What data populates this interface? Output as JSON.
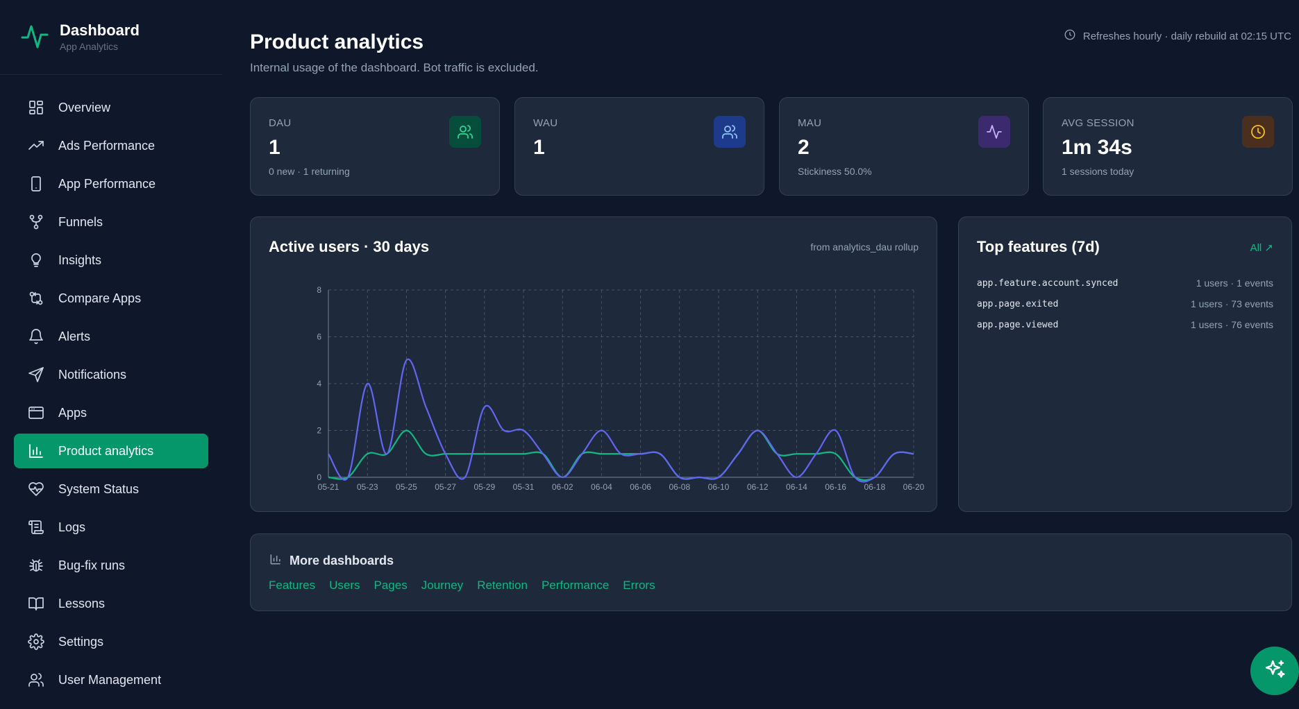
{
  "brand": {
    "title": "Dashboard",
    "subtitle": "App Analytics",
    "accent": "#10b981"
  },
  "sidebar": {
    "items": [
      {
        "label": "Overview",
        "icon": "grid-icon",
        "active": false
      },
      {
        "label": "Ads Performance",
        "icon": "trending-up-icon",
        "active": false
      },
      {
        "label": "App Performance",
        "icon": "smartphone-icon",
        "active": false
      },
      {
        "label": "Funnels",
        "icon": "funnel-nodes-icon",
        "active": false
      },
      {
        "label": "Insights",
        "icon": "lightbulb-icon",
        "active": false
      },
      {
        "label": "Compare Apps",
        "icon": "git-compare-icon",
        "active": false
      },
      {
        "label": "Alerts",
        "icon": "bell-icon",
        "active": false
      },
      {
        "label": "Notifications",
        "icon": "send-icon",
        "active": false
      },
      {
        "label": "Apps",
        "icon": "app-window-icon",
        "active": false
      },
      {
        "label": "Product analytics",
        "icon": "bar-chart-icon",
        "active": true
      },
      {
        "label": "System Status",
        "icon": "heart-pulse-icon",
        "active": false
      },
      {
        "label": "Logs",
        "icon": "scroll-icon",
        "active": false
      },
      {
        "label": "Bug-fix runs",
        "icon": "bug-icon",
        "active": false
      },
      {
        "label": "Lessons",
        "icon": "book-open-icon",
        "active": false
      },
      {
        "label": "Settings",
        "icon": "gear-icon",
        "active": false
      },
      {
        "label": "User Management",
        "icon": "users-icon",
        "active": false
      }
    ]
  },
  "header": {
    "title": "Product analytics",
    "subtitle": "Internal usage of the dashboard. Bot traffic is excluded.",
    "refresh": "Refreshes hourly · daily rebuild at 02:15 UTC"
  },
  "kpis": [
    {
      "label": "DAU",
      "value": "1",
      "sub": "0 new · 1 returning",
      "icon": "users-icon",
      "icon_bg": "#064e3b",
      "icon_color": "#34d399"
    },
    {
      "label": "WAU",
      "value": "1",
      "sub": "",
      "icon": "users-icon",
      "icon_bg": "#1e3a8a",
      "icon_color": "#93c5fd"
    },
    {
      "label": "MAU",
      "value": "2",
      "sub": "Stickiness 50.0%",
      "icon": "activity-icon",
      "icon_bg": "#3b2a6e",
      "icon_color": "#c4b5fd"
    },
    {
      "label": "AVG SESSION",
      "value": "1m 34s",
      "sub": "1 sessions today",
      "icon": "clock-icon",
      "icon_bg": "#4a2e1e",
      "icon_color": "#fbbf24"
    }
  ],
  "active_users": {
    "title": "Active users · 30 days",
    "note": "from analytics_dau rollup"
  },
  "chart_data": {
    "type": "line",
    "x": [
      "05-21",
      "05-22",
      "05-23",
      "05-24",
      "05-25",
      "05-26",
      "05-27",
      "05-28",
      "05-29",
      "05-30",
      "05-31",
      "06-01",
      "06-02",
      "06-03",
      "06-04",
      "06-05",
      "06-06",
      "06-07",
      "06-08",
      "06-09",
      "06-10",
      "06-11",
      "06-12",
      "06-13",
      "06-14",
      "06-15",
      "06-16",
      "06-17",
      "06-18",
      "06-19",
      "06-20"
    ],
    "x_ticks": [
      "05-21",
      "05-23",
      "05-25",
      "05-27",
      "05-29",
      "05-31",
      "06-02",
      "06-04",
      "06-06",
      "06-08",
      "06-10",
      "06-12",
      "06-14",
      "06-16",
      "06-18",
      "06-20"
    ],
    "ylim": [
      0,
      8
    ],
    "y_ticks": [
      0,
      2,
      4,
      6,
      8
    ],
    "grid": true,
    "series": [
      {
        "color": "#6366f1",
        "values": [
          1,
          0,
          4,
          1,
          5,
          3,
          1,
          0,
          3,
          2,
          2,
          1,
          0,
          1,
          2,
          1,
          1,
          1,
          0,
          0,
          0,
          1,
          2,
          1,
          0,
          1,
          2,
          0,
          0,
          1,
          1
        ]
      },
      {
        "color": "#10b981",
        "values": [
          0,
          0,
          1,
          1,
          2,
          1,
          1,
          1,
          1,
          1,
          1,
          1,
          0,
          1,
          1,
          1,
          1,
          1,
          0,
          0,
          0,
          1,
          2,
          1,
          1,
          1,
          1,
          0,
          0,
          1,
          1
        ]
      }
    ]
  },
  "top_features": {
    "title": "Top features (7d)",
    "link": "All ↗",
    "rows": [
      {
        "name": "app.feature.account.synced",
        "stat": "1 users · 1 events"
      },
      {
        "name": "app.page.exited",
        "stat": "1 users · 73 events"
      },
      {
        "name": "app.page.viewed",
        "stat": "1 users · 76 events"
      }
    ]
  },
  "more": {
    "title": "More dashboards",
    "links": [
      "Features",
      "Users",
      "Pages",
      "Journey",
      "Retention",
      "Performance",
      "Errors"
    ]
  },
  "fab": {
    "icon": "sparkles-icon"
  }
}
